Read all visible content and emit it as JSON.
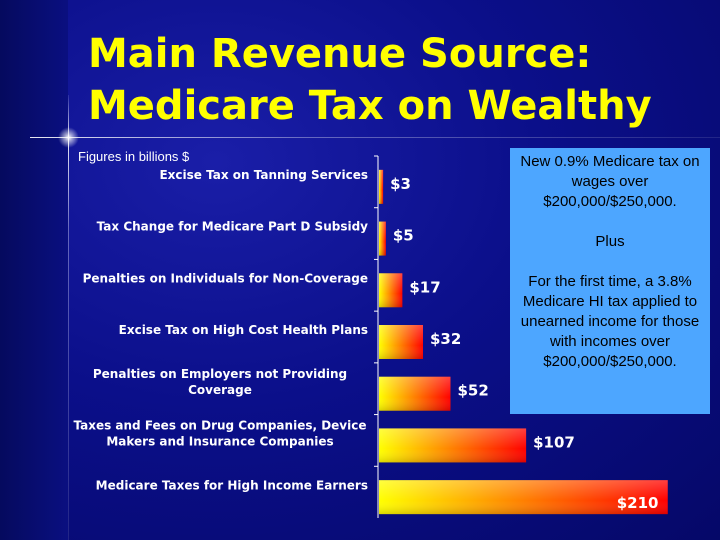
{
  "slide": {
    "title_line1": "Main Revenue Source:",
    "title_line2": "Medicare Tax on Wealthy",
    "subtitle": "Figures in billions $",
    "callout": {
      "para1": "New 0.9% Medicare tax on wages over $200,000/$250,000.",
      "para2": "Plus",
      "para3": "For the first time, a 3.8% Medicare HI tax applied to unearned income for those with incomes over $200,000/$250,000."
    },
    "colors": {
      "title": "#ffff00",
      "background": "#0b0f8a",
      "callout": "#4da6ff",
      "bar_start": "#ffff00",
      "bar_end": "#ff0000"
    }
  },
  "chart_data": {
    "type": "bar",
    "orientation": "horizontal",
    "categories": [
      [
        "Excise Tax on Tanning Services"
      ],
      [
        "Tax Change for Medicare Part D Subsidy"
      ],
      [
        "Penalties on Individuals for Non-Coverage"
      ],
      [
        "Excise Tax on High Cost Health Plans"
      ],
      [
        "Penalties on Employers not Providing",
        "Coverage"
      ],
      [
        "Taxes and Fees on Drug Companies, Device",
        "Makers and Insurance Companies"
      ],
      [
        "Medicare Taxes for High Income Earners"
      ]
    ],
    "values": [
      3,
      5,
      17,
      32,
      52,
      107,
      210
    ],
    "value_labels": [
      "$3",
      "$5",
      "$17",
      "$32",
      "$52",
      "$107",
      "$210"
    ],
    "xlim": [
      0,
      240
    ]
  }
}
